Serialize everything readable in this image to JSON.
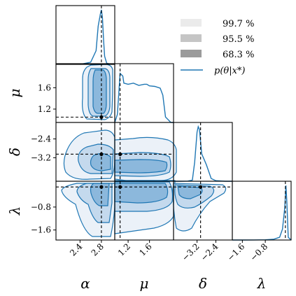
{
  "chart_data": {
    "type": "corner",
    "parameters": [
      {
        "symbol": "α",
        "ticks": [
          {
            "v": 2.4,
            "label": "2.4"
          },
          {
            "v": 2.8,
            "label": "2.8"
          }
        ],
        "range": [
          1.95,
          3.05
        ]
      },
      {
        "symbol": "μ",
        "ticks": [
          {
            "v": 1.2,
            "label": "1.2"
          },
          {
            "v": 1.6,
            "label": "1.6"
          }
        ],
        "range": [
          0.95,
          2.05
        ]
      },
      {
        "symbol": "δ",
        "ticks": [
          {
            "v": -3.2,
            "label": "−3.2"
          },
          {
            "v": -2.4,
            "label": "−2.4"
          }
        ],
        "range": [
          -4.2,
          -1.7
        ]
      },
      {
        "symbol": "λ",
        "ticks": [
          {
            "v": -1.6,
            "label": "−1.6"
          },
          {
            "v": -0.8,
            "label": "−0.8"
          }
        ],
        "range": [
          -1.95,
          0.1
        ]
      }
    ],
    "reference_values": [
      2.8,
      1.05,
      -3.05,
      -0.1
    ],
    "legend": [
      {
        "label": "99.7 %",
        "color": "#ebf1f8",
        "kind": "patch"
      },
      {
        "label": "95.5 %",
        "color": "#c5c5c5",
        "kind": "patch"
      },
      {
        "label": "68.3 %",
        "color": "#9b9b9b",
        "kind": "patch"
      },
      {
        "label": "p(θ|x*)",
        "color": "#1f77b4",
        "kind": "line"
      }
    ],
    "marginals": [
      {
        "x": [
          2.4,
          2.6,
          2.7,
          2.74,
          2.78,
          2.8,
          2.82,
          2.84,
          2.86,
          2.9,
          3.0
        ],
        "y": [
          0,
          0.04,
          0.25,
          0.7,
          0.92,
          1.0,
          0.85,
          0.45,
          0.15,
          0.02,
          0
        ]
      },
      {
        "x": [
          0.95,
          1.0,
          1.05,
          1.1,
          1.12,
          1.2,
          1.3,
          1.4,
          1.5,
          1.55,
          1.6,
          1.7,
          1.8,
          1.85,
          1.9,
          2.0,
          2.05
        ],
        "y": [
          0,
          0.15,
          0.9,
          0.85,
          0.72,
          0.7,
          0.72,
          0.68,
          0.7,
          0.7,
          0.67,
          0.66,
          0.63,
          0.5,
          0.1,
          0,
          0
        ]
      },
      {
        "x": [
          -4.2,
          -3.9,
          -3.6,
          -3.4,
          -3.3,
          -3.2,
          -3.15,
          -3.1,
          -3.0,
          -2.9,
          -2.8,
          -2.6,
          -2.4,
          -2.0,
          -1.7
        ],
        "y": [
          0,
          0,
          0.003,
          0.02,
          0.35,
          0.9,
          1.0,
          0.95,
          0.5,
          0.4,
          0.3,
          0.05,
          0.01,
          0,
          0
        ]
      },
      {
        "x": [
          -1.95,
          -1.6,
          -1.2,
          -0.8,
          -0.5,
          -0.3,
          -0.2,
          -0.12,
          -0.08,
          -0.05,
          0.0,
          0.1
        ],
        "y": [
          0,
          0,
          0.001,
          0.004,
          0.015,
          0.05,
          0.2,
          0.6,
          1.0,
          0.7,
          0.05,
          0
        ]
      }
    ]
  }
}
